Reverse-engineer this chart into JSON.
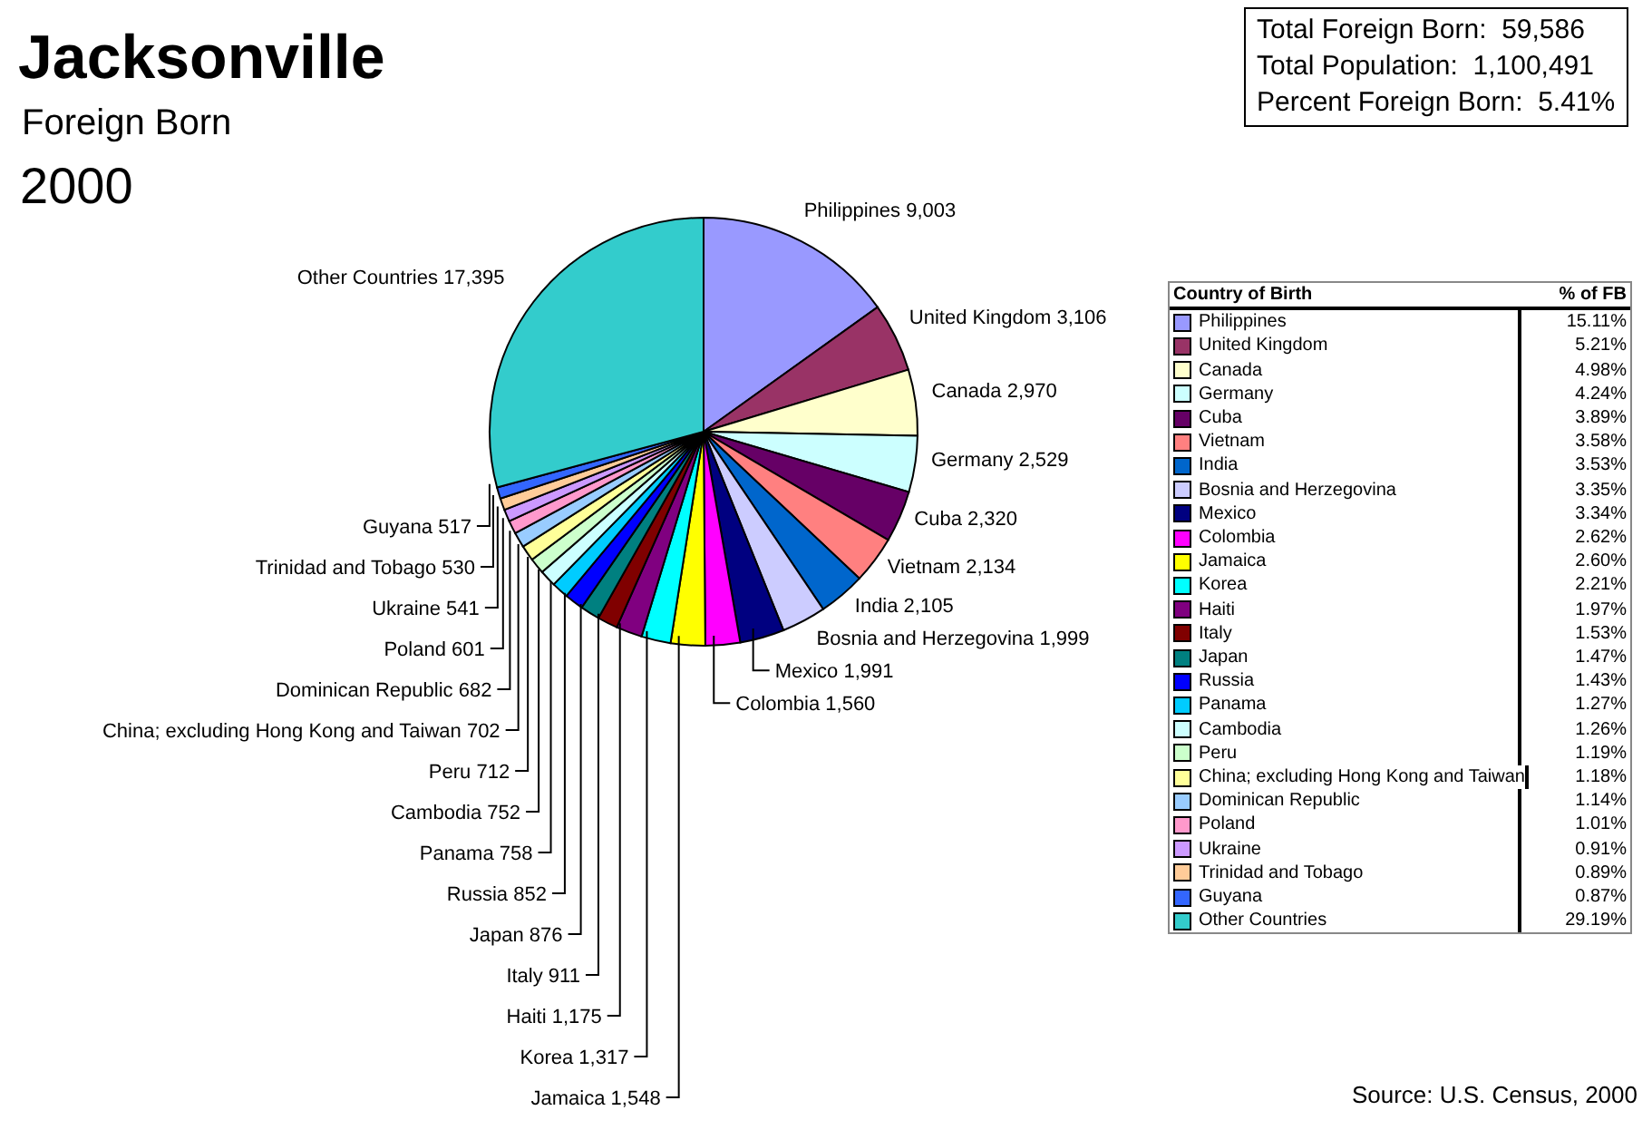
{
  "chart_data": {
    "type": "pie",
    "title": "Jacksonville",
    "subtitle": "Foreign Born",
    "legend_title": "Country of Birth",
    "annotations": [
      "2000",
      "% of FB",
      "Total Foreign Born:  59,586",
      "Total Population:  1,100,491",
      "Percent Foreign Born:  5.41%",
      "Source: U.S. Census, 2000",
      "15.11%",
      "5.21%",
      "4.98%",
      "4.24%",
      "3.89%",
      "3.58%",
      "3.53%",
      "3.35%",
      "3.34%",
      "2.62%",
      "2.60%",
      "2.21%",
      "1.97%",
      "1.53%",
      "1.47%",
      "1.43%",
      "1.27%",
      "1.26%",
      "1.19%",
      "1.18%",
      "1.14%",
      "1.01%",
      "0.91%",
      "0.89%",
      "0.87%",
      "29.19%"
    ],
    "categories": [
      "Philippines",
      "United Kingdom",
      "Canada",
      "Germany",
      "Cuba",
      "Vietnam",
      "India",
      "Bosnia and Herzegovina",
      "Mexico",
      "Colombia",
      "Jamaica",
      "Korea",
      "Haiti",
      "Italy",
      "Japan",
      "Russia",
      "Panama",
      "Cambodia",
      "Peru",
      "China; excluding Hong Kong and Taiwan",
      "Dominican Republic",
      "Poland",
      "Ukraine",
      "Trinidad and Tobago",
      "Guyana",
      "Other Countries"
    ],
    "values": [
      9003,
      3106,
      2970,
      2529,
      2320,
      2134,
      2105,
      1999,
      1991,
      1560,
      1548,
      1317,
      1175,
      911,
      876,
      852,
      758,
      752,
      712,
      702,
      682,
      601,
      541,
      530,
      517,
      17395
    ],
    "colors": [
      "#9999ff",
      "#993366",
      "#ffffcc",
      "#ccffff",
      "#660066",
      "#ff8080",
      "#0066cc",
      "#ccccff",
      "#000080",
      "#ff00ff",
      "#ffff00",
      "#00ffff",
      "#800080",
      "#800000",
      "#008080",
      "#0000ff",
      "#00ccff",
      "#ccffff",
      "#ccffcc",
      "#ffff99",
      "#99ccff",
      "#ff99cc",
      "#cc99ff",
      "#ffcc99",
      "#3366ff",
      "#33cccc"
    ],
    "value_labels": [
      "9,003",
      "3,106",
      "2,970",
      "2,529",
      "2,320",
      "2,134",
      "2,105",
      "1,999",
      "1,991",
      "1,560",
      "1,548",
      "1,317",
      "1,175",
      "911",
      "876",
      "852",
      "758",
      "752",
      "712",
      "702",
      "682",
      "601",
      "541",
      "530",
      "517",
      "17,395"
    ],
    "legend": "right"
  }
}
